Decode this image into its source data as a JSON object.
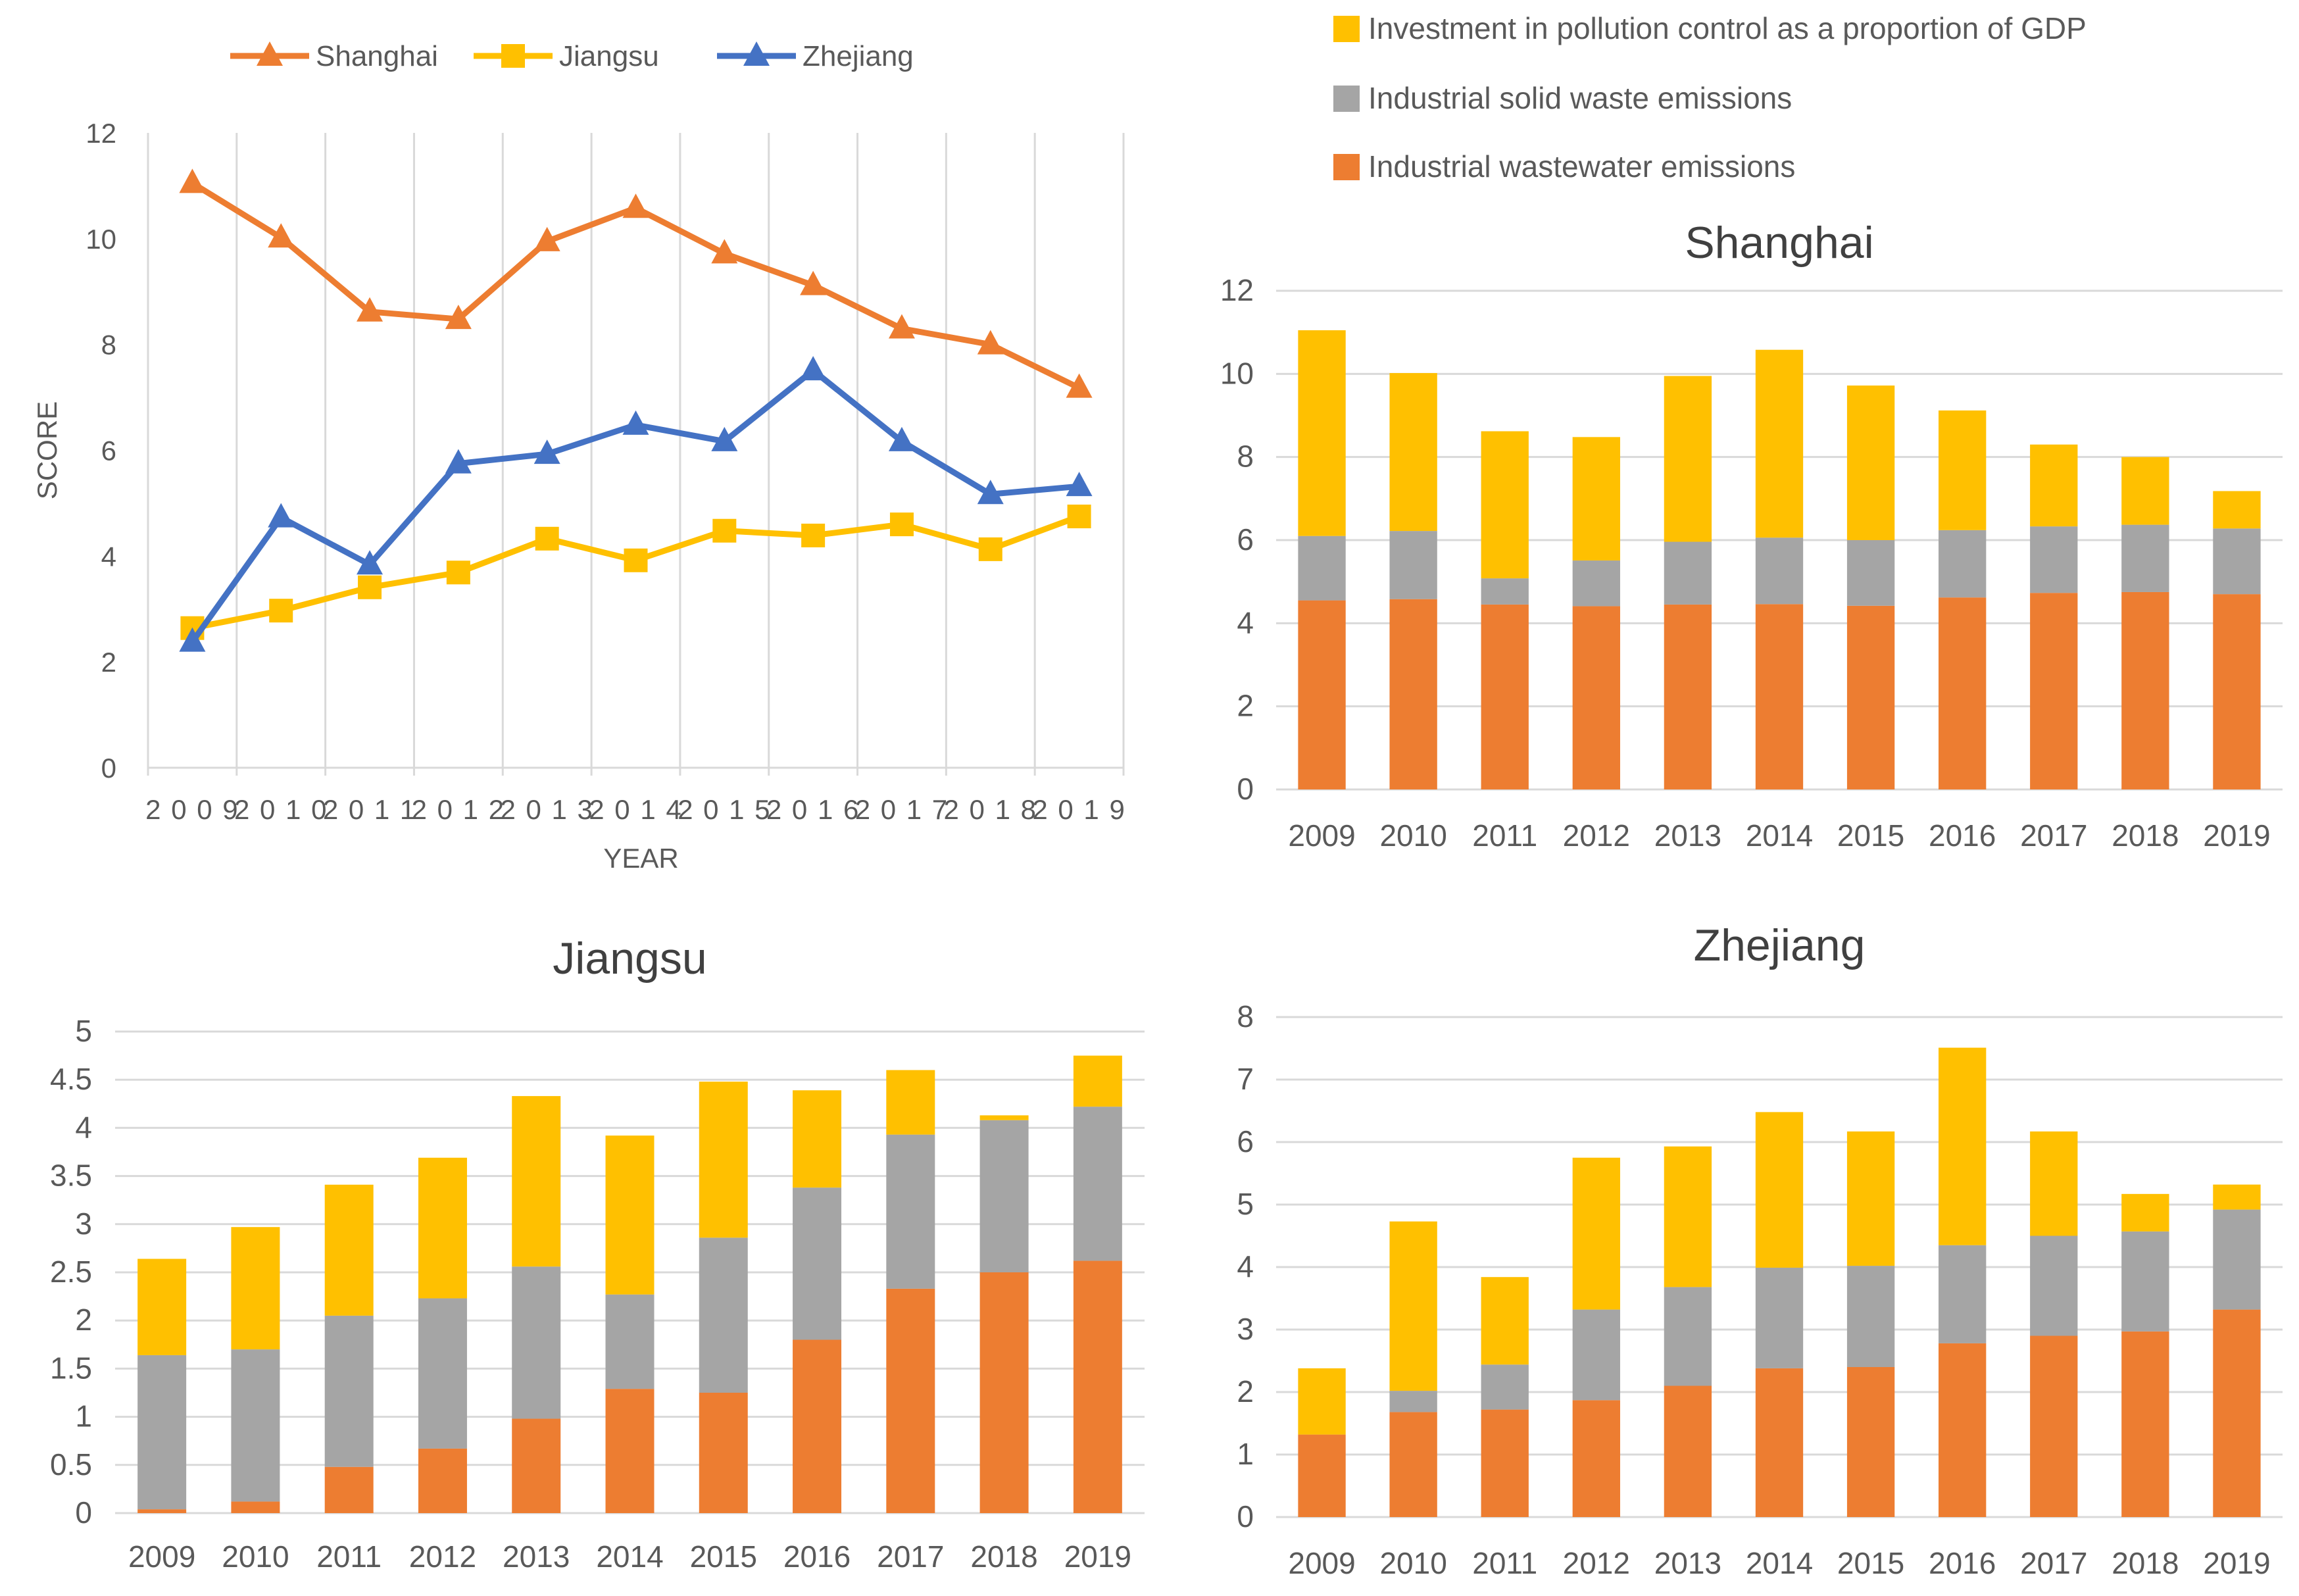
{
  "colors": {
    "shanghai": "#ED7D31",
    "jiangsu": "#FFC000",
    "zhejiang": "#4472C4",
    "wastewater": "#ED7D31",
    "solid_waste": "#A5A5A5",
    "investment": "#FFC000",
    "grid": "#D9D9D9",
    "text": "#595959"
  },
  "chart_data": [
    {
      "type": "line",
      "title": "",
      "xlabel": "YEAR",
      "ylabel": "SCORE",
      "ylim": [
        0,
        12
      ],
      "yticks": [
        "0",
        "2",
        "4",
        "6",
        "8",
        "10",
        "12"
      ],
      "categories": [
        "2009",
        "2010",
        "2011",
        "2012",
        "2013",
        "2014",
        "2015",
        "2016",
        "2017",
        "2018",
        "2019"
      ],
      "category_labels": [
        "2 0 0 9",
        "2 0 1 0",
        "2 0 1 1",
        "2 0 1 2",
        "2 0 1 3",
        "2 0 1 4",
        "2 0 1 5",
        "2 0 1 6",
        "2 0 1 7",
        "2 0 1 8",
        "2 0 1 9"
      ],
      "legend_position": "top",
      "series": [
        {
          "name": "Shanghai",
          "color_key": "shanghai",
          "marker": "triangle",
          "values": [
            11.05,
            10.02,
            8.62,
            8.48,
            9.95,
            10.58,
            9.72,
            9.12,
            8.3,
            8.0,
            7.18
          ]
        },
        {
          "name": "Jiangsu",
          "color_key": "jiangsu",
          "marker": "square",
          "values": [
            2.64,
            2.97,
            3.41,
            3.69,
            4.33,
            3.92,
            4.48,
            4.39,
            4.6,
            4.13,
            4.75
          ]
        },
        {
          "name": "Zhejiang",
          "color_key": "zhejiang",
          "marker": "triangle",
          "values": [
            2.38,
            4.73,
            3.84,
            5.75,
            5.93,
            6.48,
            6.17,
            7.51,
            6.17,
            5.17,
            5.32
          ]
        }
      ]
    },
    {
      "type": "bar",
      "stacked": true,
      "title": "Shanghai",
      "ylim": [
        0,
        12
      ],
      "yticks": [
        "0",
        "2",
        "4",
        "6",
        "8",
        "10",
        "12"
      ],
      "categories": [
        "2009",
        "2010",
        "2011",
        "2012",
        "2013",
        "2014",
        "2015",
        "2016",
        "2017",
        "2018",
        "2019"
      ],
      "series": [
        {
          "name": "Industrial wastewater emissions",
          "color_key": "wastewater",
          "values": [
            4.55,
            4.58,
            4.45,
            4.41,
            4.45,
            4.46,
            4.42,
            4.62,
            4.73,
            4.75,
            4.7
          ]
        },
        {
          "name": "Industrial solid waste emissions",
          "color_key": "solid_waste",
          "values": [
            1.55,
            1.64,
            0.63,
            1.1,
            1.51,
            1.6,
            1.58,
            1.62,
            1.6,
            1.62,
            1.58
          ]
        },
        {
          "name": "Investment in pollution control as a proportion of GDP",
          "color_key": "investment",
          "values": [
            4.95,
            3.8,
            3.54,
            2.97,
            3.99,
            4.52,
            3.72,
            2.88,
            1.97,
            1.63,
            0.9
          ]
        }
      ]
    },
    {
      "type": "bar",
      "stacked": true,
      "title": "Jiangsu",
      "ylim": [
        0,
        5
      ],
      "yticks": [
        "0",
        "0.5",
        "1",
        "1.5",
        "2",
        "2.5",
        "3",
        "3.5",
        "4",
        "4.5",
        "5"
      ],
      "categories": [
        "2009",
        "2010",
        "2011",
        "2012",
        "2013",
        "2014",
        "2015",
        "2016",
        "2017",
        "2018",
        "2019"
      ],
      "series": [
        {
          "name": "Industrial wastewater emissions",
          "color_key": "wastewater",
          "values": [
            0.04,
            0.12,
            0.48,
            0.67,
            0.98,
            1.29,
            1.25,
            1.8,
            2.33,
            2.5,
            2.62
          ]
        },
        {
          "name": "Industrial solid waste emissions",
          "color_key": "solid_waste",
          "values": [
            1.6,
            1.58,
            1.57,
            1.56,
            1.58,
            0.98,
            1.61,
            1.58,
            1.6,
            1.58,
            1.6
          ]
        },
        {
          "name": "Investment in pollution control as a proportion of GDP",
          "color_key": "investment",
          "values": [
            1.0,
            1.27,
            1.36,
            1.46,
            1.77,
            1.65,
            1.62,
            1.01,
            0.67,
            0.05,
            0.53
          ]
        }
      ]
    },
    {
      "type": "bar",
      "stacked": true,
      "title": "Zhejiang",
      "ylim": [
        0,
        8
      ],
      "yticks": [
        "0",
        "1",
        "2",
        "3",
        "4",
        "5",
        "6",
        "7",
        "8"
      ],
      "categories": [
        "2009",
        "2010",
        "2011",
        "2012",
        "2013",
        "2014",
        "2015",
        "2016",
        "2017",
        "2018",
        "2019"
      ],
      "series": [
        {
          "name": "Industrial wastewater emissions",
          "color_key": "wastewater",
          "values": [
            1.32,
            1.68,
            1.72,
            1.87,
            2.1,
            2.38,
            2.4,
            2.78,
            2.9,
            2.97,
            3.32
          ]
        },
        {
          "name": "Industrial solid waste emissions",
          "color_key": "solid_waste",
          "values": [
            0.0,
            0.34,
            0.72,
            1.45,
            1.58,
            1.61,
            1.62,
            1.57,
            1.6,
            1.6,
            1.6
          ]
        },
        {
          "name": "Investment in pollution control as a proportion of GDP",
          "color_key": "investment",
          "values": [
            1.06,
            2.71,
            1.4,
            2.43,
            2.25,
            2.49,
            2.15,
            3.16,
            1.67,
            0.6,
            0.4
          ]
        }
      ]
    }
  ],
  "bar_legend": {
    "position": "top-right",
    "items": [
      {
        "label": "Investment in pollution control as a proportion of GDP",
        "color_key": "investment"
      },
      {
        "label": "Industrial solid waste emissions",
        "color_key": "solid_waste"
      },
      {
        "label": "Industrial wastewater emissions",
        "color_key": "wastewater"
      }
    ]
  }
}
